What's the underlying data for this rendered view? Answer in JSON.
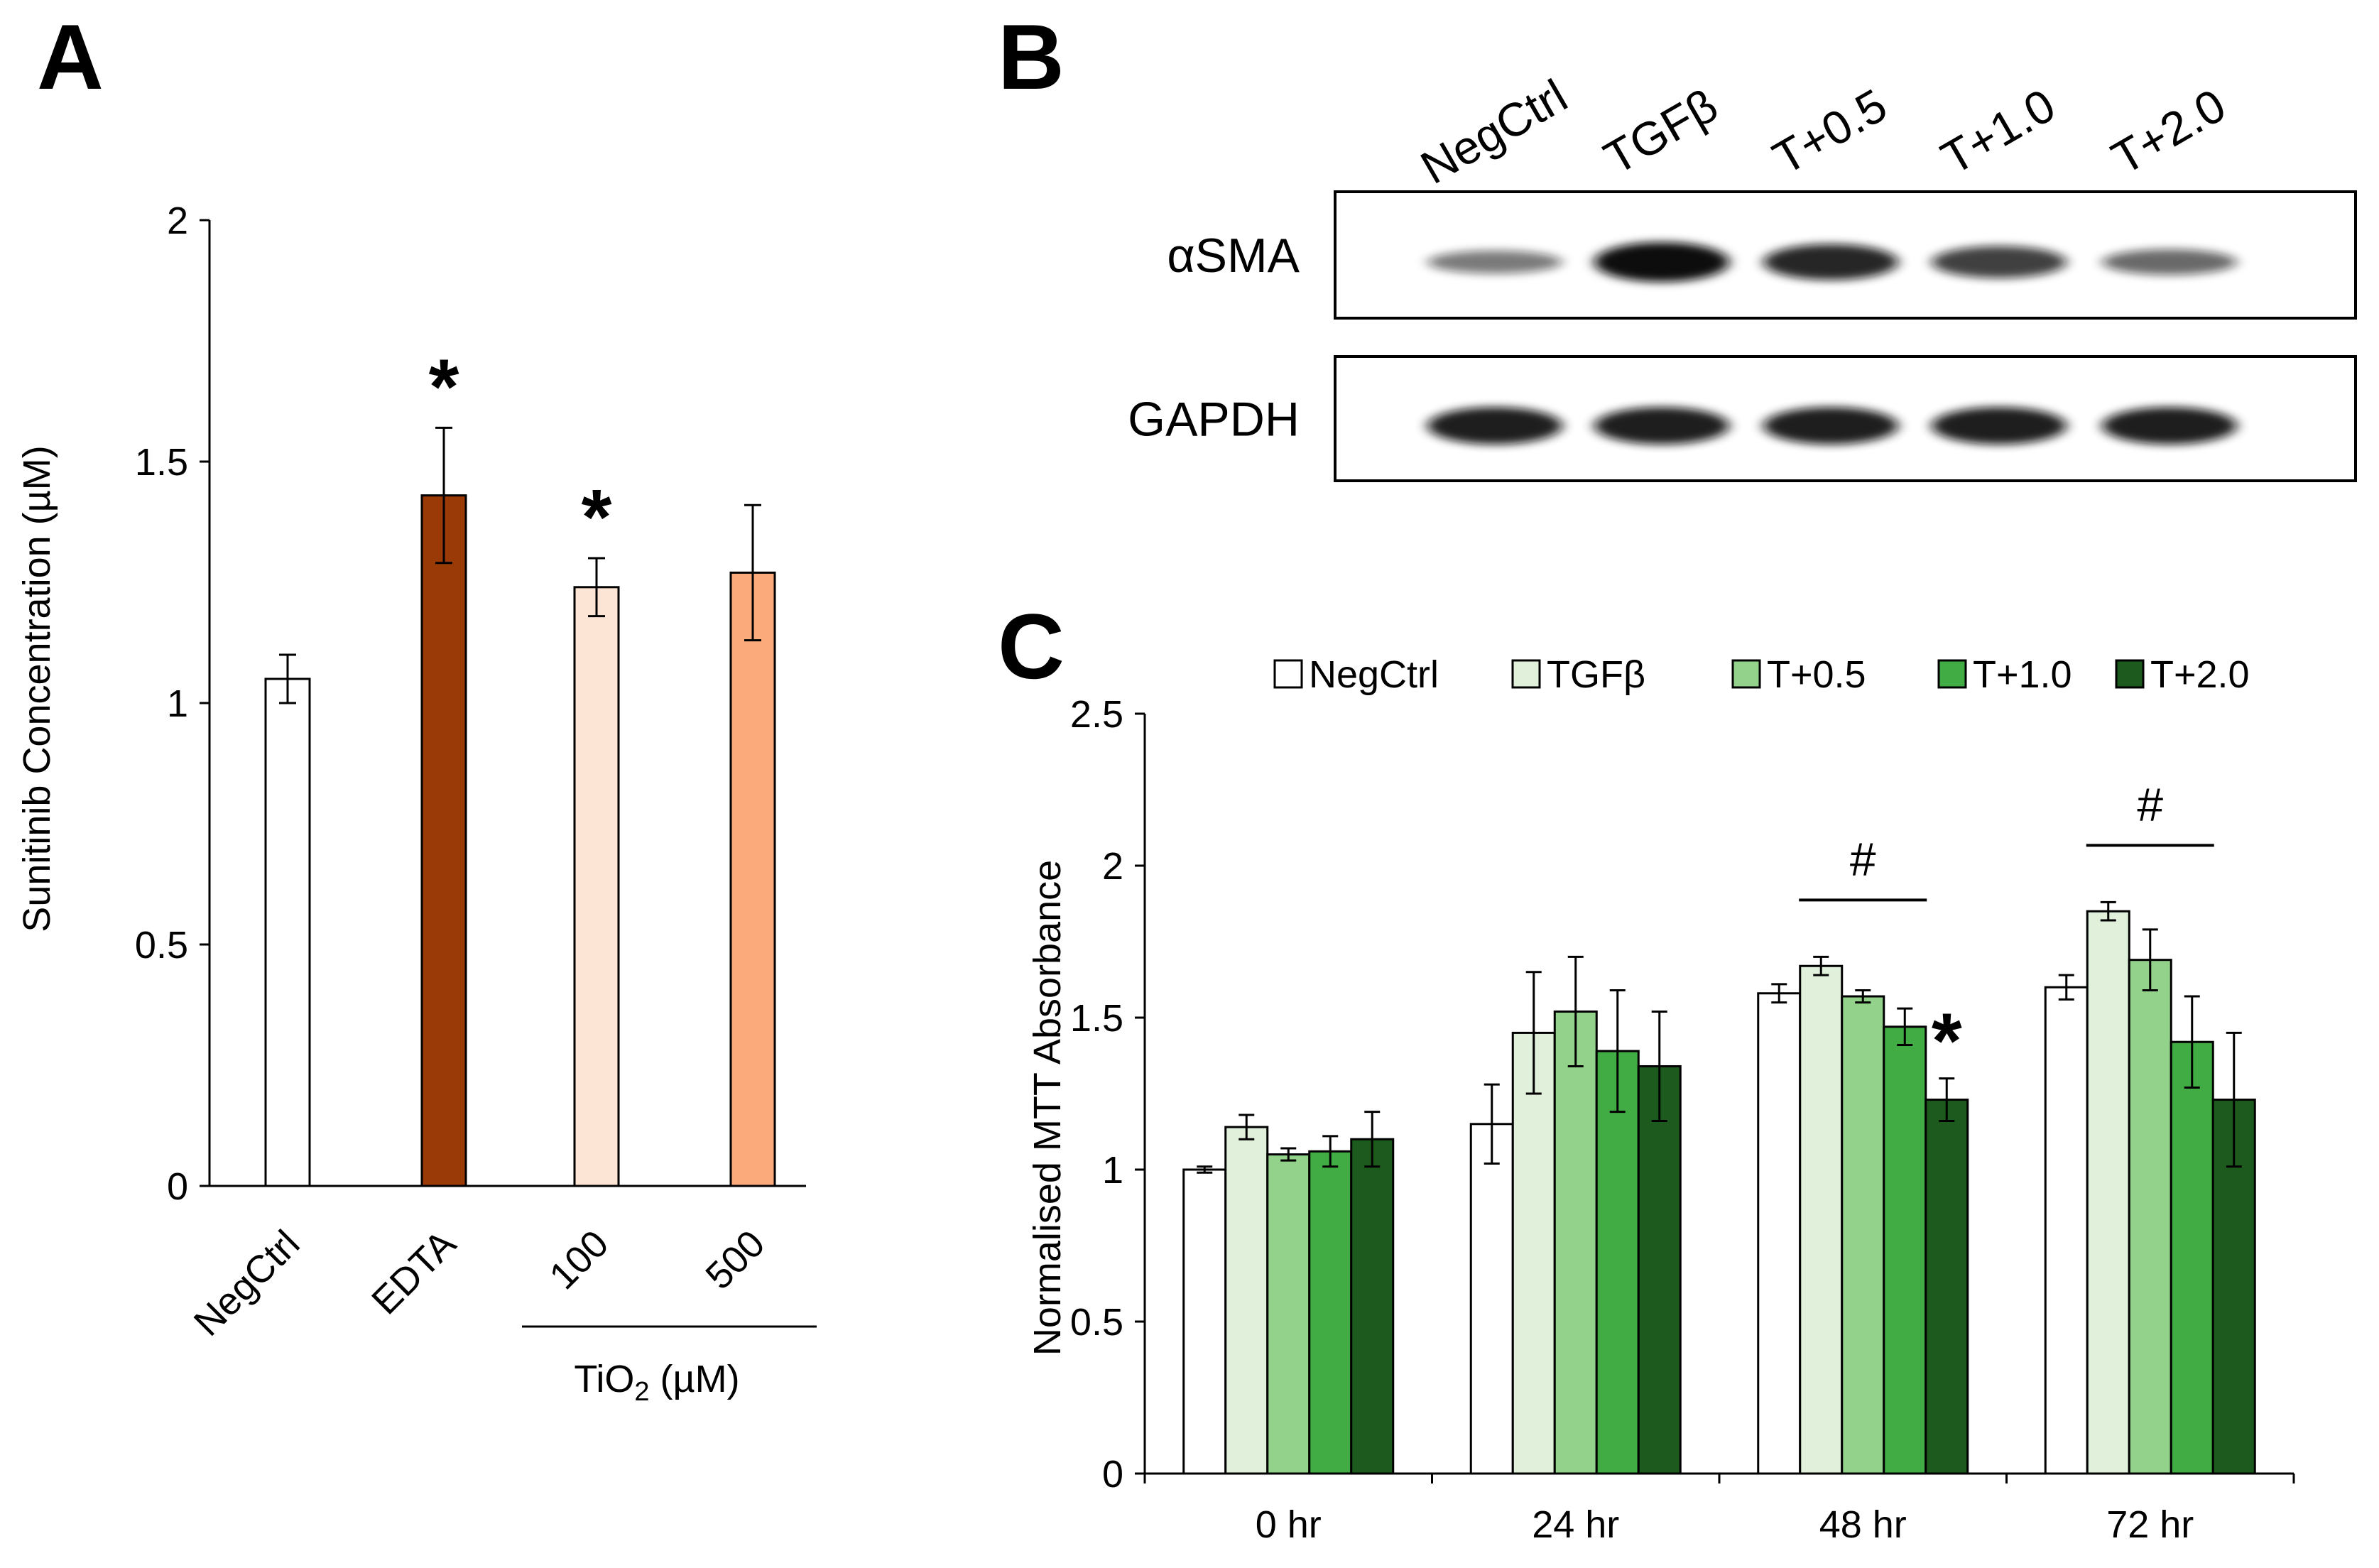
{
  "figure": {
    "panel_a_letter": "A",
    "panel_b_letter": "B",
    "panel_c_letter": "C"
  },
  "chart_data": [
    {
      "id": "A",
      "type": "bar",
      "ylabel": "Sunitinib Concentration (µM)",
      "ylim": [
        0,
        2
      ],
      "yticks": [
        "0",
        "0.5",
        "1",
        "1.5",
        "2"
      ],
      "categories": [
        "NegCtrl",
        "EDTA",
        "100",
        "500"
      ],
      "values": [
        1.05,
        1.43,
        1.24,
        1.27
      ],
      "errors": [
        0.05,
        0.14,
        0.06,
        0.14
      ],
      "colors": [
        "#ffffff",
        "#993a07",
        "#fde5d6",
        "#fbab7b"
      ],
      "significance": [
        "",
        "*",
        "*",
        ""
      ],
      "group_label": {
        "prefix": "TiO",
        "subscript": "2",
        "suffix": " (µM)"
      }
    },
    {
      "id": "B",
      "type": "western-blot",
      "lanes": [
        "NegCtrl",
        "TGFβ",
        "T+0.5",
        "T+1.0",
        "T+2.0"
      ],
      "rows": [
        {
          "label": "αSMA",
          "intensity": [
            0.35,
            1.0,
            0.85,
            0.7,
            0.45
          ]
        },
        {
          "label": "GAPDH",
          "intensity": [
            0.9,
            0.9,
            0.9,
            0.9,
            0.9
          ]
        }
      ]
    },
    {
      "id": "C",
      "type": "bar",
      "ylabel": "Normalised MTT Absorbance",
      "ylim": [
        0,
        2.5
      ],
      "yticks": [
        "0",
        "0.5",
        "1",
        "1.5",
        "2",
        "2.5"
      ],
      "categories": [
        "0 hr",
        "24 hr",
        "48 hr",
        "72 hr"
      ],
      "series": [
        {
          "name": "NegCtrl",
          "color": "#ffffff",
          "values": [
            1.0,
            1.15,
            1.58,
            1.6
          ],
          "errors": [
            0.01,
            0.13,
            0.03,
            0.04
          ]
        },
        {
          "name": "TGFβ",
          "color": "#e0f0da",
          "values": [
            1.14,
            1.45,
            1.67,
            1.85
          ],
          "errors": [
            0.04,
            0.2,
            0.03,
            0.03
          ]
        },
        {
          "name": "T+0.5",
          "color": "#93d28b",
          "values": [
            1.05,
            1.52,
            1.57,
            1.69
          ],
          "errors": [
            0.02,
            0.18,
            0.02,
            0.1
          ]
        },
        {
          "name": "T+1.0",
          "color": "#41ac43",
          "values": [
            1.06,
            1.39,
            1.47,
            1.42
          ],
          "errors": [
            0.05,
            0.2,
            0.06,
            0.15
          ]
        },
        {
          "name": "T+2.0",
          "color": "#1d5a1d",
          "values": [
            1.1,
            1.34,
            1.23,
            1.23
          ],
          "errors": [
            0.09,
            0.18,
            0.07,
            0.22
          ]
        }
      ],
      "annotations": {
        "hash_marks": [
          {
            "category": "48 hr",
            "text": "#"
          },
          {
            "category": "72 hr",
            "text": "#"
          }
        ],
        "star": {
          "category": "48 hr",
          "series": "T+2.0",
          "text": "*"
        }
      }
    }
  ]
}
